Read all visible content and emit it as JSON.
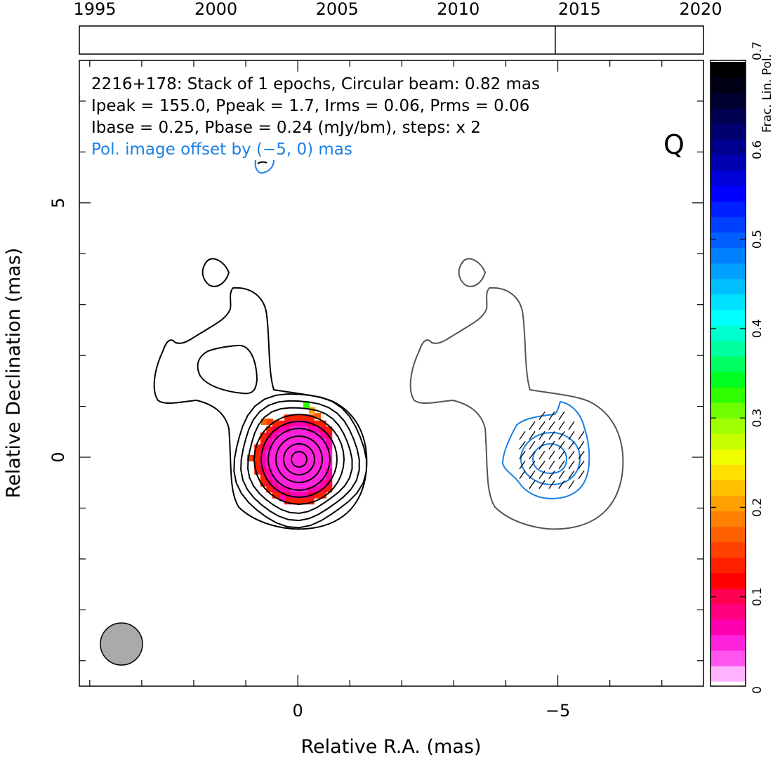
{
  "timeline": {
    "years": [
      "1995",
      "2000",
      "2005",
      "2010",
      "2015",
      "2020"
    ],
    "epoch_markers": [
      2014.0
    ]
  },
  "header": {
    "line1": "2216+178: Stack of 1 epochs, Circular beam: 0.82 mas",
    "line2": "Ipeak = 155.0, Ppeak = 1.7, Irms = 0.06, Prms = 0.06",
    "line3": "Ibase = 0.25, Pbase = 0.24 (mJy/bm), steps: x 2",
    "line4": "Pol. image offset by (−5, 0) mas"
  },
  "quality_flag": "Q",
  "colors": {
    "polarization_contours": "#1a80e6",
    "total_intensity_contours": "#000000",
    "shifted_contour": "#555555",
    "beam_fill": "#aaaaaa"
  },
  "chart_data": {
    "type": "heatmap",
    "source": "2216+178",
    "xlabel": "Relative R.A. (mas)",
    "ylabel": "Relative Declination (mas)",
    "xlim": [
      4.2,
      -7.8
    ],
    "ylim": [
      -4.5,
      7.8
    ],
    "x_ticks": [
      "0",
      "−5"
    ],
    "y_ticks": [
      "0",
      "5"
    ],
    "colorbar": {
      "label": "Frac. Lin. Pol.",
      "range": [
        0,
        0.7
      ],
      "ticks": [
        "0",
        "0.1",
        "0.2",
        "0.3",
        "0.4",
        "0.5",
        "0.6",
        "0.7"
      ]
    },
    "beam_diameter_mas": 0.82,
    "stack_epochs": 1,
    "Ipeak": 155.0,
    "Ppeak": 1.7,
    "Irms": 0.06,
    "Prms": 0.06,
    "Ibase": 0.25,
    "Pbase": 0.24,
    "units": "mJy/bm",
    "contour_step": "x 2",
    "pol_offset_mas": [
      -5,
      0
    ]
  }
}
